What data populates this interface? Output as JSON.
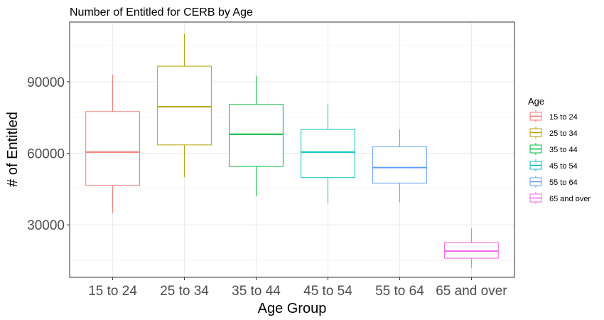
{
  "chart_data": {
    "type": "boxplot",
    "title": "Number of Entitled for CERB by Age",
    "xlabel": "Age Group",
    "ylabel": "# of Entitled",
    "ylim": [
      8000,
      115000
    ],
    "yticks": [
      30000,
      60000,
      90000
    ],
    "ytick_labels": [
      "30000",
      "60000",
      "90000"
    ],
    "grid": true,
    "legend_title": "Age",
    "legend_position": "right",
    "categories": [
      "15 to 24",
      "25 to 34",
      "35 to 44",
      "45 to 54",
      "55 to 64",
      "65 and over"
    ],
    "series": [
      {
        "name": "15 to 24",
        "color": "#F8766D",
        "min": 35000,
        "q1": 46500,
        "median": 60500,
        "q3": 77500,
        "max": 93000
      },
      {
        "name": "25 to 34",
        "color": "#B79F00",
        "min": 50000,
        "q1": 63500,
        "median": 79500,
        "q3": 96500,
        "max": 110000
      },
      {
        "name": "35 to 44",
        "color": "#00BA38",
        "min": 42000,
        "q1": 54500,
        "median": 68000,
        "q3": 80500,
        "max": 92500
      },
      {
        "name": "45 to 54",
        "color": "#00BFC4",
        "min": 39000,
        "q1": 49800,
        "median": 60500,
        "q3": 70000,
        "max": 80500
      },
      {
        "name": "55 to 64",
        "color": "#619CFF",
        "min": 39500,
        "q1": 47500,
        "median": 54000,
        "q3": 62800,
        "max": 70000
      },
      {
        "name": "65 and over",
        "color": "#F564E3",
        "min": 12000,
        "q1": 16000,
        "median": 19000,
        "q3": 22500,
        "max": 28500
      }
    ]
  }
}
